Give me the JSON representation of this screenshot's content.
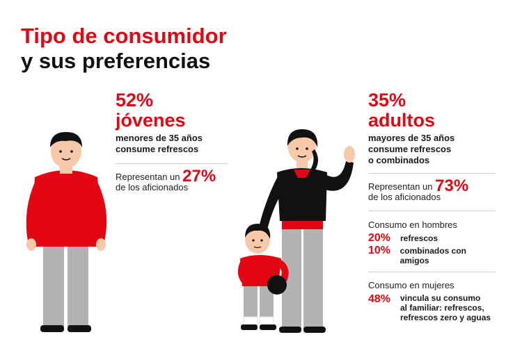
{
  "title": {
    "line1": "Tipo de consumidor",
    "line2": "y sus preferencias"
  },
  "jovenes": {
    "percent": "52%",
    "label": "jóvenes",
    "desc_line1": "menores de 35 años",
    "desc_line2": "consume refrescos",
    "represent_prefix": "Representan un",
    "represent_pct": "27%",
    "represent_suffix": "de los aficionados"
  },
  "adultos": {
    "percent": "35%",
    "label": "adultos",
    "desc_line1": "mayores de 35 años",
    "desc_line2": "consume refrescos",
    "desc_line3": "o combinados",
    "represent_prefix": "Representan un",
    "represent_pct": "73%",
    "represent_suffix": "de los aficionados",
    "hombres": {
      "heading": "Consumo en hombres",
      "items": [
        {
          "pct": "20%",
          "text": "refrescos"
        },
        {
          "pct": "10%",
          "text": "combinados con amigos"
        }
      ]
    },
    "mujeres": {
      "heading": "Consumo en mujeres",
      "pct": "48%",
      "text_line1": "vincula su consumo",
      "text_line2": "al familiar: refrescos,",
      "text_line3": "refrescos zero y aguas"
    }
  },
  "colors": {
    "accent": "#e30613",
    "dark": "#111111",
    "pants": "#b3b3b3",
    "skin": "#f7c9a8"
  }
}
